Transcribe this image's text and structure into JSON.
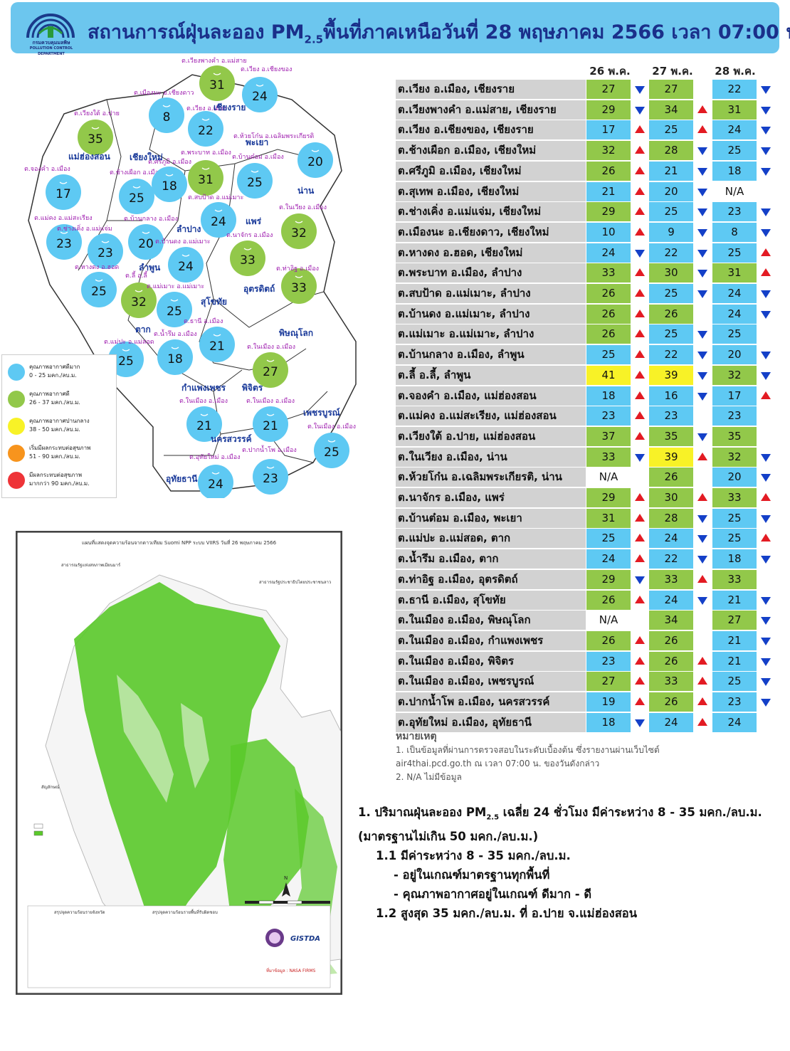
{
  "header": {
    "title_main": "สถานการณ์ฝุ่นละออง PM",
    "title_sub": "2.5",
    "title_rest": "พื้นที่ภาคเหนือวันที่ 28 พฤษภาคม 2566 เวลา 07:00 น.",
    "logo_text": "กรมควบคุมมลพิษ",
    "logo_subtext": "POLLUTION CONTROL DEPARTMENT"
  },
  "colors": {
    "blue": "#5ec9f3",
    "green": "#92c84a",
    "yellow": "#f8f227",
    "orange": "#f7941d",
    "red": "#ee3438",
    "header_bg": "#6cc6ee",
    "arrow_up": "#e31b23",
    "arrow_down": "#1440c8"
  },
  "table": {
    "days": [
      "26 พ.ค.",
      "27 พ.ค.",
      "28 พ.ค."
    ],
    "rows": [
      {
        "loc": "ต.เวียง อ.เมือง, เชียงราย",
        "v": [
          "27",
          "27",
          "22"
        ],
        "c": [
          "green",
          "green",
          "blue"
        ],
        "t": [
          "down",
          "",
          "down"
        ]
      },
      {
        "loc": "ต.เวียงพางคำ อ.แม่สาย, เชียงราย",
        "v": [
          "29",
          "34",
          "31"
        ],
        "c": [
          "green",
          "green",
          "green"
        ],
        "t": [
          "down",
          "up",
          "down"
        ]
      },
      {
        "loc": "ต.เวียง อ.เชียงของ, เชียงราย",
        "v": [
          "17",
          "25",
          "24"
        ],
        "c": [
          "blue",
          "blue",
          "blue"
        ],
        "t": [
          "up",
          "up",
          "down"
        ]
      },
      {
        "loc": "ต.ช้างเผือก อ.เมือง, เชียงใหม่",
        "v": [
          "32",
          "28",
          "25"
        ],
        "c": [
          "green",
          "green",
          "blue"
        ],
        "t": [
          "up",
          "down",
          "down"
        ]
      },
      {
        "loc": "ต.ศรีภูมิ อ.เมือง, เชียงใหม่",
        "v": [
          "26",
          "21",
          "18"
        ],
        "c": [
          "green",
          "blue",
          "blue"
        ],
        "t": [
          "up",
          "down",
          "down"
        ]
      },
      {
        "loc": "ต.สุเทพ อ.เมือง, เชียงใหม่",
        "v": [
          "21",
          "20",
          "N/A"
        ],
        "c": [
          "blue",
          "blue",
          "none"
        ],
        "t": [
          "up",
          "down",
          ""
        ]
      },
      {
        "loc": "ต.ช่างเคิ่ง อ.แม่แจ่ม, เชียงใหม่",
        "v": [
          "29",
          "25",
          "23"
        ],
        "c": [
          "green",
          "blue",
          "blue"
        ],
        "t": [
          "up",
          "down",
          "down"
        ]
      },
      {
        "loc": "ต.เมืองนะ อ.เชียงดาว, เชียงใหม่",
        "v": [
          "10",
          "9",
          "8"
        ],
        "c": [
          "blue",
          "blue",
          "blue"
        ],
        "t": [
          "up",
          "down",
          "down"
        ]
      },
      {
        "loc": "ต.หางดง อ.ฮอด, เชียงใหม่",
        "v": [
          "24",
          "22",
          "25"
        ],
        "c": [
          "blue",
          "blue",
          "blue"
        ],
        "t": [
          "down",
          "down",
          "up"
        ]
      },
      {
        "loc": "ต.พระบาท อ.เมือง, ลำปาง",
        "v": [
          "33",
          "30",
          "31"
        ],
        "c": [
          "green",
          "green",
          "green"
        ],
        "t": [
          "up",
          "down",
          "up"
        ]
      },
      {
        "loc": "ต.สบป้าด อ.แม่เมาะ, ลำปาง",
        "v": [
          "26",
          "25",
          "24"
        ],
        "c": [
          "green",
          "blue",
          "blue"
        ],
        "t": [
          "up",
          "down",
          "down"
        ]
      },
      {
        "loc": "ต.บ้านดง อ.แม่เมาะ, ลำปาง",
        "v": [
          "26",
          "26",
          "24"
        ],
        "c": [
          "green",
          "green",
          "blue"
        ],
        "t": [
          "up",
          "",
          "down"
        ]
      },
      {
        "loc": "ต.แม่เมาะ อ.แม่เมาะ, ลำปาง",
        "v": [
          "26",
          "25",
          "25"
        ],
        "c": [
          "green",
          "blue",
          "blue"
        ],
        "t": [
          "up",
          "down",
          ""
        ]
      },
      {
        "loc": "ต.บ้านกลาง อ.เมือง, ลำพูน",
        "v": [
          "25",
          "22",
          "20"
        ],
        "c": [
          "blue",
          "blue",
          "blue"
        ],
        "t": [
          "up",
          "down",
          "down"
        ]
      },
      {
        "loc": "ต.ลี้ อ.ลี้, ลำพูน",
        "v": [
          "41",
          "39",
          "32"
        ],
        "c": [
          "yellow",
          "yellow",
          "green"
        ],
        "t": [
          "up",
          "down",
          "down"
        ]
      },
      {
        "loc": "ต.จองคำ อ.เมือง, แม่ฮ่องสอน",
        "v": [
          "18",
          "16",
          "17"
        ],
        "c": [
          "blue",
          "blue",
          "blue"
        ],
        "t": [
          "up",
          "down",
          "up"
        ]
      },
      {
        "loc": "ต.แม่คง อ.แม่สะเรียง, แม่ฮ่องสอน",
        "v": [
          "23",
          "23",
          "23"
        ],
        "c": [
          "blue",
          "blue",
          "blue"
        ],
        "t": [
          "up",
          "",
          ""
        ]
      },
      {
        "loc": "ต.เวียงใต้ อ.ปาย, แม่ฮ่องสอน",
        "v": [
          "37",
          "35",
          "35"
        ],
        "c": [
          "green",
          "green",
          "green"
        ],
        "t": [
          "up",
          "down",
          ""
        ]
      },
      {
        "loc": "ต.ในเวียง อ.เมือง, น่าน",
        "v": [
          "33",
          "39",
          "32"
        ],
        "c": [
          "green",
          "yellow",
          "green"
        ],
        "t": [
          "down",
          "up",
          "down"
        ]
      },
      {
        "loc": "ต.ห้วยโก๋น อ.เฉลิมพระเกียรติ, น่าน",
        "v": [
          "N/A",
          "26",
          "20"
        ],
        "c": [
          "none",
          "green",
          "blue"
        ],
        "t": [
          "",
          "",
          "down"
        ]
      },
      {
        "loc": "ต.นาจักร อ.เมือง, แพร่",
        "v": [
          "29",
          "30",
          "33"
        ],
        "c": [
          "green",
          "green",
          "green"
        ],
        "t": [
          "up",
          "up",
          "up"
        ]
      },
      {
        "loc": "ต.บ้านต๋อม อ.เมือง, พะเยา",
        "v": [
          "31",
          "28",
          "25"
        ],
        "c": [
          "green",
          "green",
          "blue"
        ],
        "t": [
          "up",
          "down",
          "down"
        ]
      },
      {
        "loc": "ต.แม่ปะ อ.แม่สอด, ตาก",
        "v": [
          "25",
          "24",
          "25"
        ],
        "c": [
          "blue",
          "blue",
          "blue"
        ],
        "t": [
          "up",
          "down",
          "up"
        ]
      },
      {
        "loc": "ต.น้ำรึม อ.เมือง, ตาก",
        "v": [
          "24",
          "22",
          "18"
        ],
        "c": [
          "blue",
          "blue",
          "blue"
        ],
        "t": [
          "up",
          "down",
          "down"
        ]
      },
      {
        "loc": "ต.ท่าอิฐ อ.เมือง, อุตรดิตถ์",
        "v": [
          "29",
          "33",
          "33"
        ],
        "c": [
          "green",
          "green",
          "green"
        ],
        "t": [
          "down",
          "up",
          ""
        ]
      },
      {
        "loc": "ต.ธานี อ.เมือง, สุโขทัย",
        "v": [
          "26",
          "24",
          "21"
        ],
        "c": [
          "green",
          "blue",
          "blue"
        ],
        "t": [
          "up",
          "down",
          "down"
        ]
      },
      {
        "loc": "ต.ในเมือง อ.เมือง, พิษณุโลก",
        "v": [
          "N/A",
          "34",
          "27"
        ],
        "c": [
          "none",
          "green",
          "green"
        ],
        "t": [
          "",
          "",
          "down"
        ]
      },
      {
        "loc": "ต.ในเมือง อ.เมือง, กำแพงเพชร",
        "v": [
          "26",
          "26",
          "21"
        ],
        "c": [
          "green",
          "green",
          "blue"
        ],
        "t": [
          "up",
          "",
          "down"
        ]
      },
      {
        "loc": "ต.ในเมือง อ.เมือง, พิจิตร",
        "v": [
          "23",
          "26",
          "21"
        ],
        "c": [
          "blue",
          "green",
          "blue"
        ],
        "t": [
          "up",
          "up",
          "down"
        ]
      },
      {
        "loc": "ต.ในเมือง อ.เมือง, เพชรบูรณ์",
        "v": [
          "27",
          "33",
          "25"
        ],
        "c": [
          "green",
          "green",
          "blue"
        ],
        "t": [
          "up",
          "up",
          "down"
        ]
      },
      {
        "loc": "ต.ปากน้ำโพ อ.เมือง, นครสวรรค์",
        "v": [
          "19",
          "26",
          "23"
        ],
        "c": [
          "blue",
          "green",
          "blue"
        ],
        "t": [
          "up",
          "up",
          "down"
        ]
      },
      {
        "loc": "ต.อุทัยใหม่ อ.เมือง, อุทัยธานี",
        "v": [
          "18",
          "24",
          "24"
        ],
        "c": [
          "blue",
          "blue",
          "blue"
        ],
        "t": [
          "down",
          "up",
          ""
        ]
      }
    ]
  },
  "notes": {
    "heading": "หมายเหตุ",
    "line1": "1. เป็นข้อมูลที่ผ่านการตรวจสอบในระดับเบื้องต้น ซึ่งรายงานผ่านเว็บไซต์",
    "line2": "air4thai.pcd.go.th ณ เวลา 07:00 น. ของวันดังกล่าว",
    "line3": "2. N/A ไม่มีข้อมูล"
  },
  "summary": {
    "l1a": "1. ปริมาณฝุ่นละออง PM",
    "l1sub": "2.5",
    "l1b": " เฉลี่ย 24 ชั่วโมง มีค่าระหว่าง 8 - 35 มคก./ลบ.ม.",
    "l2": "(มาตรฐานไม่เกิน 50 มคก./ลบ.ม.)",
    "l3": "1.1 มีค่าระหว่าง 8 - 35 มคก./ลบ.ม.",
    "l4": "- อยู่ในเกณฑ์มาตรฐานทุกพื้นที่",
    "l5": "- คุณภาพอากาศอยู่ในเกณฑ์ ดีมาก - ดี",
    "l6": "1.2 สูงสุด 35 มคก./ลบ.ม. ที่ อ.ปาย จ.แม่ฮ่องสอน"
  },
  "legend": [
    {
      "t1": "คุณภาพอากาศดีมาก",
      "t2": "0 - 25 มคก./ลบ.ม.",
      "color": "blue"
    },
    {
      "t1": "คุณภาพอากาศดี",
      "t2": "26 - 37 มคก./ลบ.ม.",
      "color": "green"
    },
    {
      "t1": "คุณภาพอากาศปานกลาง",
      "t2": "38 - 50 มคก./ลบ.ม.",
      "color": "yellow"
    },
    {
      "t1": "เริ่มมีผลกระทบต่อสุขภาพ",
      "t2": "51 - 90 มคก./ลบ.ม.",
      "color": "orange"
    },
    {
      "t1": "มีผลกระทบต่อสุขภาพ",
      "t2": "มากกว่า 90 มคก./ลบ.ม.",
      "color": "red"
    }
  ],
  "map": {
    "provinces": [
      "เชียงราย",
      "พะเยา",
      "น่าน",
      "แม่ฮ่องสอน",
      "เชียงใหม่",
      "ลำปาง",
      "แพร่",
      "ลำพูน",
      "อุตรดิตถ์",
      "สุโขทัย",
      "ตาก",
      "พิษณุโลก",
      "กำแพงเพชร",
      "พิจิตร",
      "เพชรบูรณ์",
      "นครสวรรค์",
      "อุทัยธานี"
    ],
    "stations": [
      {
        "label": "ต.เวียงพางคำ อ.แม่สาย",
        "value": "31",
        "color": "green"
      },
      {
        "label": "ต.เวียง อ.เชียงของ",
        "value": "24",
        "color": "blue"
      },
      {
        "label": "ต.เมืองนะ อ.เชียงดาว",
        "value": "8",
        "color": "blue"
      },
      {
        "label": "ต.เวียง อ.เมือง",
        "value": "22",
        "color": "blue"
      },
      {
        "label": "ต.เวียงใต้ อ.ปาย",
        "value": "35",
        "color": "green"
      },
      {
        "label": "ต.ห้วยโก๋น อ.เฉลิมพระเกียรติ",
        "value": "20",
        "color": "blue"
      },
      {
        "label": "ต.จองคำ อ.เมือง",
        "value": "17",
        "color": "blue"
      },
      {
        "label": "ต.ช้างเผือก อ.เมือง",
        "value": "25",
        "color": "blue"
      },
      {
        "label": "ต.ศรีภูมิ อ.เมือง",
        "value": "18",
        "color": "blue"
      },
      {
        "label": "ต.พระบาท อ.เมือง",
        "value": "31",
        "color": "green"
      },
      {
        "label": "ต.บ้านต๋อม อ.เมือง",
        "value": "25",
        "color": "blue"
      },
      {
        "label": "ต.สบป้าด อ.แม่เมาะ",
        "value": "24",
        "color": "blue"
      },
      {
        "label": "ต.ในเวียง อ.เมือง",
        "value": "32",
        "color": "green"
      },
      {
        "label": "ต.แม่คง อ.แม่สะเรียง",
        "value": "23",
        "color": "blue"
      },
      {
        "label": "ต.ช่างเคิ่ง อ.แม่แจ่ม",
        "value": "23",
        "color": "blue"
      },
      {
        "label": "ต.บ้านกลาง อ.เมือง",
        "value": "20",
        "color": "blue"
      },
      {
        "label": "ต.บ้านดง อ.แม่เมาะ",
        "value": "24",
        "color": "blue"
      },
      {
        "label": "ต.นาจักร อ.เมือง",
        "value": "33",
        "color": "green"
      },
      {
        "label": "ต.หางดง อ.ฮอด",
        "value": "25",
        "color": "blue"
      },
      {
        "label": "ต.ลี้ อ.ลี้",
        "value": "32",
        "color": "green"
      },
      {
        "label": "ต.แม่เมาะ อ.แม่เมาะ",
        "value": "25",
        "color": "blue"
      },
      {
        "label": "ต.ท่าอิฐ อ.เมือง",
        "value": "33",
        "color": "green"
      },
      {
        "label": "ต.แม่ปะ อ.แม่สอด",
        "value": "25",
        "color": "blue"
      },
      {
        "label": "ต.น้ำรึม อ.เมือง",
        "value": "18",
        "color": "blue"
      },
      {
        "label": "ต.ธานี อ.เมือง",
        "value": "21",
        "color": "blue"
      },
      {
        "label": "ต.ในเมือง อ.เมือง",
        "value": "27",
        "color": "green"
      },
      {
        "label": "ต.ในเมือง อ.เมือง",
        "value": "21",
        "color": "blue"
      },
      {
        "label": "ต.ในเมือง อ.เมือง",
        "value": "21",
        "color": "blue"
      },
      {
        "label": "ต.ในเมือง อ.เมือง",
        "value": "25",
        "color": "blue"
      },
      {
        "label": "ต.ปากน้ำโพ อ.เมือง",
        "value": "23",
        "color": "blue"
      },
      {
        "label": "ต.อุทัยใหม่ อ.เมือง",
        "value": "24",
        "color": "blue"
      }
    ]
  },
  "satellite": {
    "title": "แผนที่แสดงจุดความร้อนจากดาวเทียม Suomi NPP ระบบ VIIRS วันที่ 26 พฤษภาคม 2566",
    "label_myanmar": "สาธารณรัฐแห่งสหภาพเมียนมาร์",
    "label_laos": "สาธารณรัฐประชาธิปไตยประชาชนลาว",
    "legend_title": "สัญลักษณ์",
    "summary_left": "สรุปจุดความร้อนรายจังหวัด",
    "summary_right": "สรุปจุดความร้อนรายพื้นที่รับผิดชอบ",
    "source": "ที่มาข้อมูล : NASA FIRMS",
    "gistda": "GISTDA",
    "north": "N"
  },
  "chart_data": {
    "type": "table",
    "title": "สถานการณ์ฝุ่นละออง PM2.5 พื้นที่ภาคเหนือวันที่ 28 พฤษภาคม 2566 เวลา 07:00 น.",
    "columns": [
      "26 พ.ค.",
      "27 พ.ค.",
      "28 พ.ค."
    ],
    "series": [
      {
        "name": "26 พ.ค.",
        "values": [
          27,
          29,
          17,
          32,
          26,
          21,
          29,
          10,
          24,
          33,
          26,
          26,
          26,
          25,
          41,
          18,
          23,
          37,
          33,
          null,
          29,
          31,
          25,
          24,
          29,
          26,
          null,
          26,
          23,
          27,
          19,
          18
        ]
      },
      {
        "name": "27 พ.ค.",
        "values": [
          27,
          34,
          25,
          28,
          21,
          20,
          25,
          9,
          22,
          30,
          25,
          26,
          25,
          22,
          39,
          16,
          23,
          35,
          39,
          26,
          30,
          28,
          24,
          22,
          33,
          24,
          34,
          26,
          26,
          33,
          26,
          24
        ]
      },
      {
        "name": "28 พ.ค.",
        "values": [
          22,
          31,
          24,
          25,
          18,
          null,
          23,
          8,
          25,
          31,
          24,
          24,
          25,
          20,
          32,
          17,
          23,
          35,
          32,
          20,
          33,
          25,
          25,
          18,
          33,
          21,
          27,
          21,
          21,
          25,
          23,
          24
        ]
      }
    ]
  }
}
